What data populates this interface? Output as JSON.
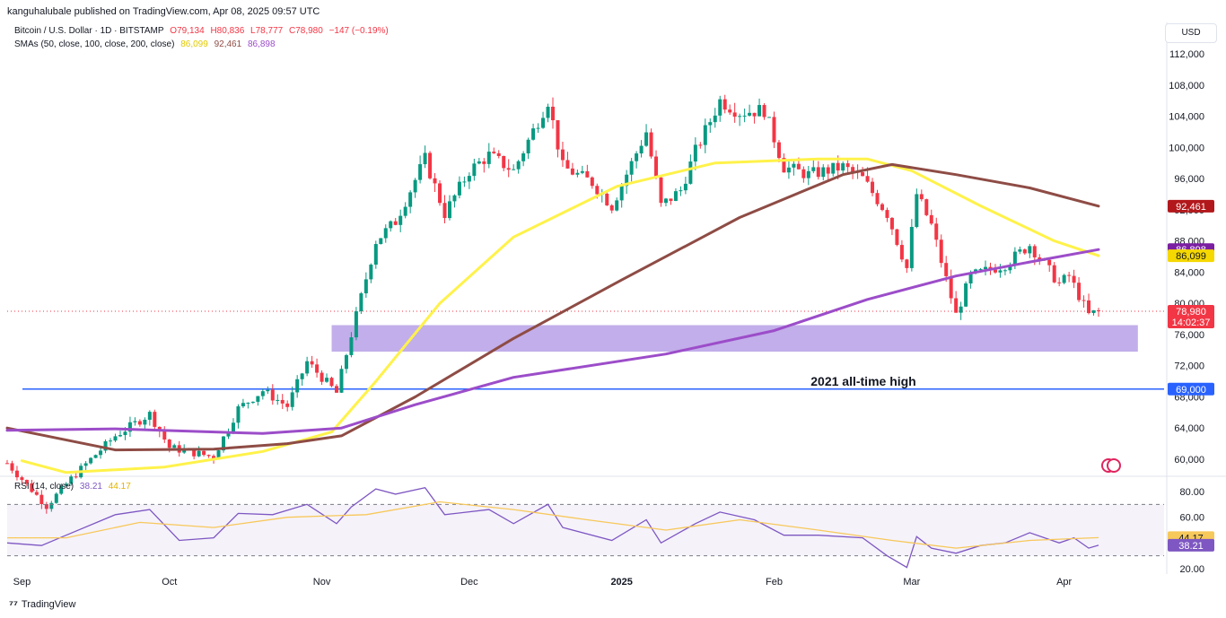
{
  "header": {
    "published": "kanguhalubale published on TradingView.com, Apr 08, 2025 09:57 UTC"
  },
  "symbol_legend": {
    "name": "Bitcoin / U.S. Dollar · 1D · BITSTAMP",
    "open": "O79,134",
    "high": "H80,836",
    "low": "L78,777",
    "close": "C78,980",
    "change": "−147 (−0.19%)",
    "change_color": "#f23645"
  },
  "sma_legend": {
    "label": "SMAs (50, close, 100, close, 200, close)",
    "sma50": "86,099",
    "sma100": "92,461",
    "sma200": "86,898"
  },
  "rsi_legend": {
    "label": "RSI (14, close)",
    "rsi": "38.21",
    "ma": "44.17"
  },
  "currency": "USD",
  "footer": {
    "brand": "TradingView"
  },
  "colors": {
    "up": "#089981",
    "down": "#f23645",
    "sma50": "#fff24a",
    "sma100": "#8e4c45",
    "sma200": "#9c4dc9",
    "support_zone": "#b7a0e6",
    "ath_line": "#2962ff",
    "rsi_line": "#7e57c2",
    "rsi_ma": "#f7c85a"
  },
  "chart_data": [
    {
      "type": "candlestick",
      "title": "Bitcoin / U.S. Dollar · 1D · BITSTAMP",
      "x_ticks": [
        "Sep",
        "Oct",
        "Nov",
        "Dec",
        "2025",
        "Feb",
        "Mar",
        "Apr"
      ],
      "y_ticks": [
        "112,000",
        "108,000",
        "104,000",
        "100,000",
        "96,000",
        "92,000",
        "88,000",
        "84,000",
        "80,000",
        "76,000",
        "72,000",
        "68,000",
        "64,000",
        "60,000"
      ],
      "ylim": [
        58500,
        113500
      ],
      "date_range": [
        "2024-08-29",
        "2025-04-08"
      ],
      "price_path": [
        [
          "2024-08-29",
          59500
        ],
        [
          "2024-09-06",
          54000
        ],
        [
          "2024-09-11",
          57500
        ],
        [
          "2024-09-15",
          60000
        ],
        [
          "2024-09-20",
          63000
        ],
        [
          "2024-09-27",
          65800
        ],
        [
          "2024-10-01",
          61500
        ],
        [
          "2024-10-10",
          60300
        ],
        [
          "2024-10-15",
          66500
        ],
        [
          "2024-10-20",
          68800
        ],
        [
          "2024-10-25",
          66800
        ],
        [
          "2024-10-29",
          72500
        ],
        [
          "2024-11-04",
          68500
        ],
        [
          "2024-11-07",
          76000
        ],
        [
          "2024-11-12",
          88000
        ],
        [
          "2024-11-16",
          90500
        ],
        [
          "2024-11-22",
          98500
        ],
        [
          "2024-11-26",
          91500
        ],
        [
          "2024-12-01",
          97000
        ],
        [
          "2024-12-05",
          99000
        ],
        [
          "2024-12-10",
          97000
        ],
        [
          "2024-12-17",
          106000
        ],
        [
          "2024-12-20",
          97500
        ],
        [
          "2024-12-26",
          95500
        ],
        [
          "2024-12-30",
          92500
        ],
        [
          "2025-01-06",
          102000
        ],
        [
          "2025-01-09",
          92500
        ],
        [
          "2025-01-13",
          94500
        ],
        [
          "2025-01-16",
          99500
        ],
        [
          "2025-01-21",
          106000
        ],
        [
          "2025-01-25",
          104500
        ],
        [
          "2025-01-30",
          104800
        ],
        [
          "2025-02-03",
          97500
        ],
        [
          "2025-02-08",
          96500
        ],
        [
          "2025-02-15",
          97500
        ],
        [
          "2025-02-19",
          96000
        ],
        [
          "2025-02-24",
          91500
        ],
        [
          "2025-02-28",
          84500
        ],
        [
          "2025-03-02",
          94000
        ],
        [
          "2025-03-05",
          90000
        ],
        [
          "2025-03-10",
          78500
        ],
        [
          "2025-03-13",
          83500
        ],
        [
          "2025-03-20",
          85000
        ],
        [
          "2025-03-25",
          87500
        ],
        [
          "2025-03-31",
          82500
        ],
        [
          "2025-04-02",
          83500
        ],
        [
          "2025-04-06",
          78500
        ],
        [
          "2025-04-08",
          78980
        ]
      ],
      "series": [
        {
          "name": "SMA 50",
          "values": [
            [
              "2024-09-01",
              59800
            ],
            [
              "2024-09-10",
              58300
            ],
            [
              "2024-09-30",
              59000
            ],
            [
              "2024-10-20",
              61000
            ],
            [
              "2024-11-03",
              63500
            ],
            [
              "2024-11-12",
              70000
            ],
            [
              "2024-11-25",
              80000
            ],
            [
              "2024-12-10",
              88500
            ],
            [
              "2024-12-31",
              95000
            ],
            [
              "2025-01-20",
              98000
            ],
            [
              "2025-02-10",
              98500
            ],
            [
              "2025-02-20",
              98500
            ],
            [
              "2025-03-01",
              97000
            ],
            [
              "2025-03-15",
              92500
            ],
            [
              "2025-03-30",
              88000
            ],
            [
              "2025-04-08",
              86099
            ]
          ]
        },
        {
          "name": "SMA 100",
          "values": [
            [
              "2024-08-29",
              64000
            ],
            [
              "2024-09-20",
              61200
            ],
            [
              "2024-10-10",
              61300
            ],
            [
              "2024-10-25",
              62000
            ],
            [
              "2024-11-05",
              63000
            ],
            [
              "2024-11-20",
              68000
            ],
            [
              "2024-12-10",
              75500
            ],
            [
              "2025-01-01",
              83000
            ],
            [
              "2025-01-25",
              91000
            ],
            [
              "2025-02-15",
              96500
            ],
            [
              "2025-02-25",
              97800
            ],
            [
              "2025-03-10",
              96500
            ],
            [
              "2025-03-25",
              94800
            ],
            [
              "2025-04-08",
              92461
            ]
          ]
        },
        {
          "name": "SMA 200",
          "values": [
            [
              "2024-08-29",
              63700
            ],
            [
              "2024-09-20",
              63900
            ],
            [
              "2024-10-20",
              63300
            ],
            [
              "2024-11-05",
              64000
            ],
            [
              "2024-11-20",
              67000
            ],
            [
              "2024-12-10",
              70500
            ],
            [
              "2025-01-10",
              73500
            ],
            [
              "2025-02-01",
              76500
            ],
            [
              "2025-02-20",
              80500
            ],
            [
              "2025-03-10",
              83500
            ],
            [
              "2025-03-25",
              85300
            ],
            [
              "2025-04-08",
              86898
            ]
          ]
        }
      ],
      "annotations": [
        {
          "label": "2021 all-time high",
          "value": 69000
        },
        {
          "label": "support zone",
          "range": [
            73800,
            77200
          ],
          "x_range": [
            "2024-11-03",
            "2025-04-16"
          ]
        }
      ],
      "price_labels": [
        {
          "value": 92461,
          "text": "92,461"
        },
        {
          "value": 86898,
          "text": "86,898"
        },
        {
          "value": 86099,
          "text": "86,099"
        },
        {
          "value": 78980,
          "text": "78,980",
          "sub": "14:02:37"
        },
        {
          "value": 69000,
          "text": "69,000"
        }
      ]
    },
    {
      "type": "line",
      "title": "RSI (14, close)",
      "y_ticks": [
        "80.00",
        "60.00",
        "40.00",
        "20.00"
      ],
      "ylim": [
        17,
        83
      ],
      "band": [
        30,
        70
      ],
      "rsi_path": [
        [
          "2024-08-29",
          40
        ],
        [
          "2024-09-05",
          38
        ],
        [
          "2024-09-10",
          46
        ],
        [
          "2024-09-20",
          62
        ],
        [
          "2024-09-27",
          66
        ],
        [
          "2024-10-03",
          42
        ],
        [
          "2024-10-10",
          44
        ],
        [
          "2024-10-15",
          63
        ],
        [
          "2024-10-22",
          62
        ],
        [
          "2024-10-29",
          70
        ],
        [
          "2024-11-04",
          55
        ],
        [
          "2024-11-07",
          68
        ],
        [
          "2024-11-12",
          82
        ],
        [
          "2024-11-16",
          78
        ],
        [
          "2024-11-22",
          83
        ],
        [
          "2024-11-26",
          62
        ],
        [
          "2024-12-05",
          66
        ],
        [
          "2024-12-10",
          55
        ],
        [
          "2024-12-17",
          70
        ],
        [
          "2024-12-20",
          52
        ],
        [
          "2024-12-30",
          42
        ],
        [
          "2025-01-06",
          58
        ],
        [
          "2025-01-09",
          40
        ],
        [
          "2025-01-16",
          55
        ],
        [
          "2025-01-21",
          64
        ],
        [
          "2025-01-28",
          58
        ],
        [
          "2025-02-03",
          46
        ],
        [
          "2025-02-10",
          46
        ],
        [
          "2025-02-19",
          44
        ],
        [
          "2025-02-24",
          30
        ],
        [
          "2025-02-28",
          21
        ],
        [
          "2025-03-02",
          45
        ],
        [
          "2025-03-05",
          36
        ],
        [
          "2025-03-10",
          32
        ],
        [
          "2025-03-15",
          38
        ],
        [
          "2025-03-20",
          40
        ],
        [
          "2025-03-25",
          48
        ],
        [
          "2025-03-31",
          40
        ],
        [
          "2025-04-03",
          44
        ],
        [
          "2025-04-06",
          36
        ],
        [
          "2025-04-08",
          38.21
        ]
      ],
      "rsi_ma_path": [
        [
          "2024-08-29",
          44
        ],
        [
          "2024-09-10",
          44
        ],
        [
          "2024-09-25",
          56
        ],
        [
          "2024-10-10",
          52
        ],
        [
          "2024-10-25",
          60
        ],
        [
          "2024-11-10",
          62
        ],
        [
          "2024-11-25",
          72
        ],
        [
          "2024-12-10",
          66
        ],
        [
          "2024-12-25",
          58
        ],
        [
          "2025-01-10",
          50
        ],
        [
          "2025-01-25",
          58
        ],
        [
          "2025-02-10",
          50
        ],
        [
          "2025-02-25",
          42
        ],
        [
          "2025-03-10",
          36
        ],
        [
          "2025-03-25",
          42
        ],
        [
          "2025-04-08",
          44.17
        ]
      ],
      "price_labels": [
        {
          "value": 44.17,
          "text": "44.17"
        },
        {
          "value": 38.21,
          "text": "38.21"
        }
      ]
    }
  ]
}
